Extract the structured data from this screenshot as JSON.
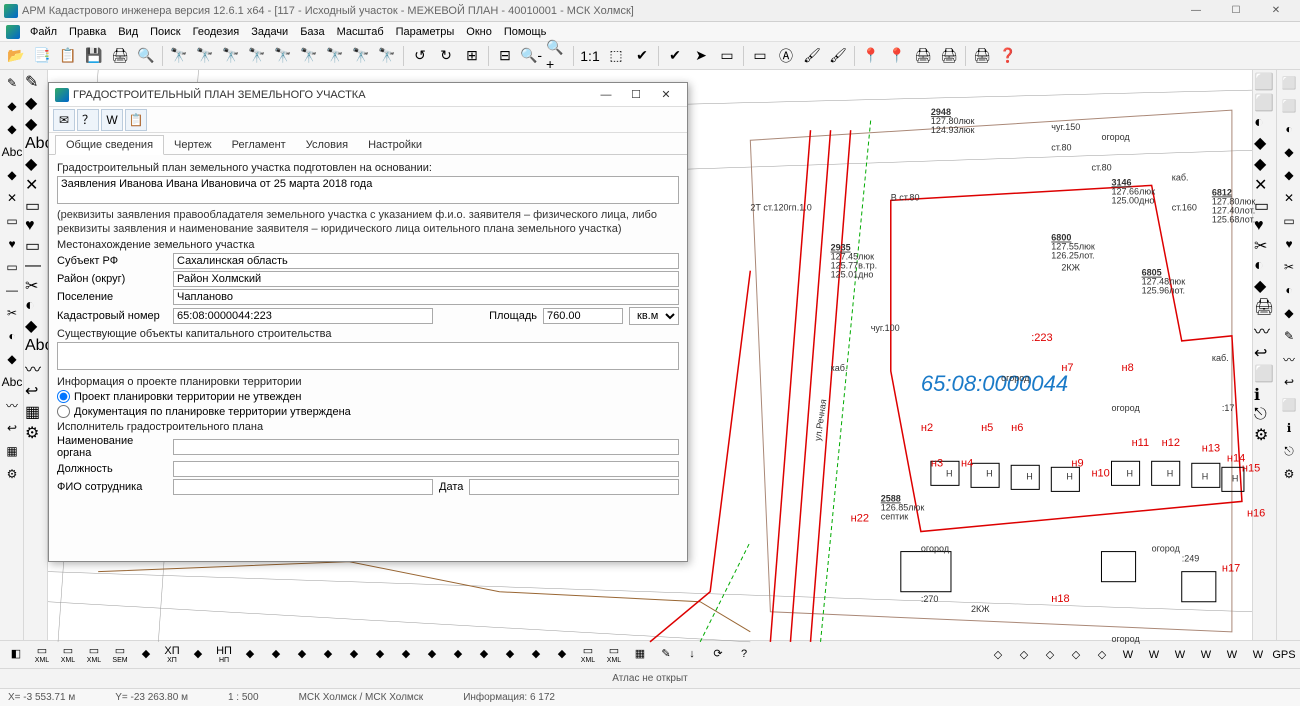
{
  "app": {
    "title": "АРМ Кадастрового инженера версия 12.6.1 x64 - [117 - Исходный участок - МЕЖЕВОЙ ПЛАН - 40010001 - МСК Холмск]"
  },
  "winbtns": {
    "min": "—",
    "max": "☐",
    "close": "✕"
  },
  "menu": [
    "Файл",
    "Правка",
    "Вид",
    "Поиск",
    "Геодезия",
    "Задачи",
    "База",
    "Масштаб",
    "Параметры",
    "Окно",
    "Помощь"
  ],
  "toolbar_icons": [
    "📂",
    "📑",
    "📋",
    "💾",
    "🖨",
    "🔍",
    "🔭",
    "🔭",
    "🔭",
    "🔭",
    "🔭",
    "🔭",
    "🔭",
    "🔭",
    "🔭",
    "↺",
    "↻",
    "⊞",
    "⊟",
    "🔍-",
    "🔍+",
    "1:1",
    "⬚",
    "✔",
    "✔",
    "➤",
    "▭",
    "▭",
    "Ⓐ",
    "🖌",
    "🖌",
    "📍",
    "📍",
    "🖨",
    "🖨",
    "🖨",
    "❓"
  ],
  "left_icons": [
    "✎",
    "◆",
    "◆",
    "Abc",
    "◆",
    "✕",
    "▭",
    "♥",
    "▭",
    "—",
    "✂",
    "◐",
    "◆",
    "Abc",
    "〰",
    "↩",
    "▦",
    "⚙"
  ],
  "left2_icons": [
    "✎",
    "◆",
    "◆",
    "Abc",
    "◆",
    "✕",
    "▭",
    "♥",
    "▭",
    "—",
    "✂",
    "◐",
    "◆",
    "Abc",
    "〰",
    "↩",
    "▦",
    "⚙"
  ],
  "right_icons": [
    "⬜",
    "⬜",
    "◐",
    "◆",
    "◆",
    "✕",
    "▭",
    "♥",
    "✂",
    "◐",
    "◆",
    "✎",
    "〰",
    "↩",
    "⬜",
    "ℹ",
    "⎋",
    "⚙"
  ],
  "right2_icons": [
    "⬜",
    "⬜",
    "◐",
    "◆",
    "◆",
    "✕",
    "▭",
    "♥",
    "✂",
    "◐",
    "◆",
    "🖨",
    "〰",
    "↩",
    "⬜",
    "ℹ",
    "⎋",
    "⚙"
  ],
  "dialog": {
    "title": "ГРАДОСТРОИТЕЛЬНЫЙ ПЛАН ЗЕМЕЛЬНОГО УЧАСТКА",
    "tb_icons": [
      "✉",
      "？",
      "W",
      "📋"
    ],
    "tabs": [
      "Общие сведения",
      "Чертеж",
      "Регламент",
      "Условия",
      "Настройки"
    ],
    "active_tab": 0,
    "l_basis": "Градостроительный план земельного участка подготовлен на основании:",
    "v_basis": "Заявления Иванова Ивана Ивановича от 25 марта 2018 года",
    "note1": "(реквизиты заявления правообладателя земельного участка с указанием ф.и.о. заявителя – физического лица, либо",
    "note2": "реквизиты заявления и наименование заявителя – юридического лица  оительного плана земельного участка)",
    "l_location": "Местонахождение земельного участка",
    "k_subj": "Субъект РФ",
    "v_subj": "Сахалинская область",
    "k_raion": "Район (округ)",
    "v_raion": "Район Холмский",
    "k_pos": "Поселение",
    "v_pos": "Чапланово",
    "k_kad": "Кадастровый номер",
    "v_kad": "65:08:0000044:223",
    "k_area": "Площадь",
    "v_area": "760.00",
    "u_area": "кв.м",
    "l_exist": "Существующие объекты капитального строительства",
    "v_exist": "",
    "l_proj": "Информация о проекте планировки территории",
    "r1": "Проект планировки территории не утвежден",
    "r2": "Документация по планировке территории утверждена",
    "l_exec": "Исполнитель градостроительного плана",
    "k_org": "Наименование органа",
    "v_org": "",
    "k_dol": "Должность",
    "v_dol": "",
    "k_fio": "ФИО сотрудника",
    "v_fio": "",
    "k_date": "Дата",
    "v_date": ""
  },
  "map": {
    "cad_label": "65:08:0000044",
    "parcel_main": ":223",
    "parcels": [
      ":17",
      ":249",
      ":270"
    ],
    "points": [
      "н2",
      "н3",
      "н4",
      "н5",
      "н6",
      "н7",
      "н8",
      "н9",
      "н10",
      "н11",
      "н12",
      "н13",
      "н14",
      "н15",
      "н16",
      "н17",
      "н18",
      "н22"
    ],
    "blocks": [
      {
        "id": "2948",
        "l1": "127.80люк",
        "l2": "124.93люк"
      },
      {
        "id": "3146",
        "l1": "127.66люк",
        "l2": "125.00дно"
      },
      {
        "id": "6812",
        "l1": "127.80люк",
        "l2": "127.40лот.",
        "l3": "125.68лот."
      },
      {
        "id": "6800",
        "l1": "127.55люк",
        "l2": "126.25лот."
      },
      {
        "id": "6805",
        "l1": "127.48люк",
        "l2": "125.96лот."
      },
      {
        "id": "2935",
        "l1": "127.45люк",
        "l2": "125.77в.тр.",
        "l3": "125.01дно"
      },
      {
        "id": "2588",
        "l1": "126.85люк",
        "l2": "септик"
      }
    ],
    "words": [
      "огород",
      "огород",
      "огород",
      "огород",
      "огород",
      "огород",
      "2КЖ",
      "2КЖ",
      "Н",
      "Н",
      "Н",
      "Н",
      "Н",
      "Н",
      "Н",
      "Н",
      "каб.",
      "каб.",
      "каб.",
      "ст.80",
      "ст.80",
      "ст.160",
      "чуг.100",
      "чуг.150",
      "В ст.80",
      "2Т ст.120гп.1.0",
      "ул.Речная"
    ]
  },
  "bottom_icons": [
    "◧",
    "XML",
    "XML",
    "XML",
    "SEM",
    "◆",
    "XП",
    "◆",
    "НП",
    "◆",
    "◆",
    "◆",
    "◆",
    "◆",
    "◆",
    "◆",
    "◆",
    "◆",
    "◆",
    "◆",
    "◆",
    "◆",
    "XML",
    "XML",
    "▦",
    "✎",
    "↓",
    "⟳",
    "?"
  ],
  "bottom_right_icons": [
    "◇",
    "◇",
    "◇",
    "◇",
    "◇",
    "W",
    "W",
    "W",
    "W",
    "W",
    "W",
    "GPS"
  ],
  "status": {
    "atlas": "Атлас не открыт",
    "x": "X= -3 553.71 м",
    "y": "Y= -23 263.80 м",
    "scale": "1 : 500",
    "cs": "МСК Холмск / МСК Холмск",
    "inf": "Информация: 6 172"
  }
}
